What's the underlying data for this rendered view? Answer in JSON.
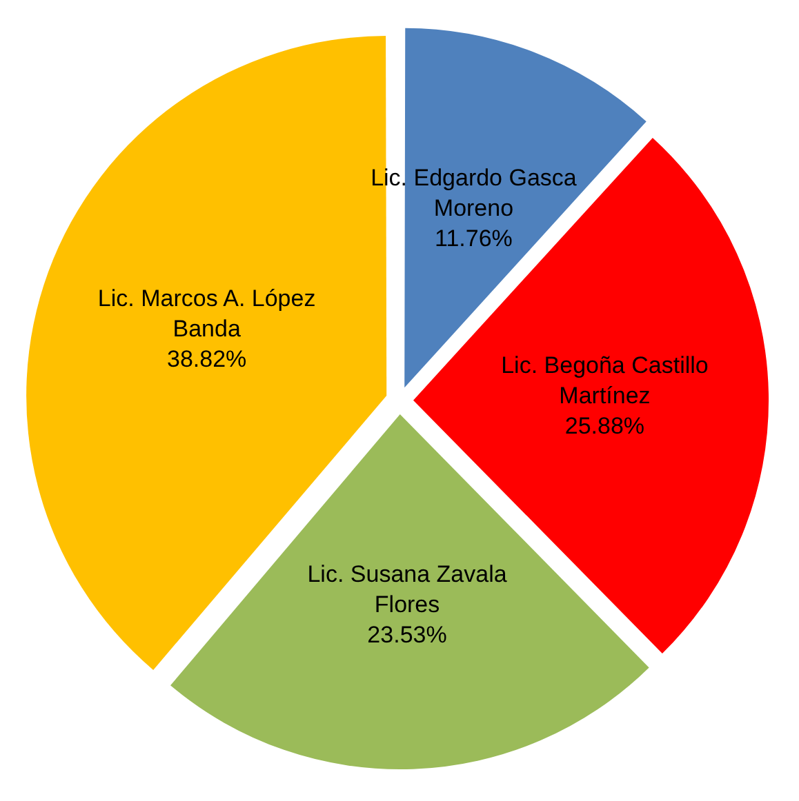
{
  "chart_data": {
    "type": "pie",
    "categories": [
      "Lic. Edgardo Gasca Moreno",
      "Lic. Begoña Castillo Martínez",
      "Lic. Susana Zavala Flores",
      "Lic. Marcos A. López Banda"
    ],
    "values": [
      11.76,
      25.88,
      23.53,
      38.82
    ],
    "colors": [
      "#4f81bd",
      "#ff0000",
      "#9bbb59",
      "#ffc000"
    ],
    "value_labels": [
      "11.76%",
      "25.88%",
      "23.53%",
      "38.82%"
    ],
    "legend": false
  }
}
